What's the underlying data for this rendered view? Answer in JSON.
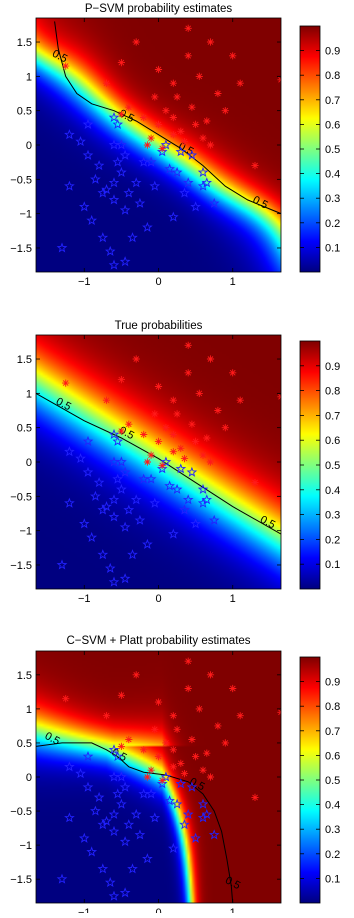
{
  "chart_data": [
    {
      "type": "heatmap",
      "title": "P−SVM probability estimates",
      "xlabel": "",
      "ylabel": "",
      "xlim": [
        -1.65,
        1.65
      ],
      "ylim": [
        -1.85,
        1.85
      ],
      "x_ticks": [
        -1,
        0,
        1
      ],
      "x_tick_labels": [
        "−1",
        "0",
        "1"
      ],
      "y_ticks": [
        -1.5,
        -1,
        -0.5,
        0,
        0.5,
        1,
        1.5
      ],
      "y_tick_labels": [
        "−1.5",
        "−1",
        "−0.5",
        "0",
        "0.5",
        "1",
        "1.5"
      ],
      "colorbar": {
        "range": [
          0,
          1
        ],
        "ticks": [
          "0.1",
          "0.2",
          "0.3",
          "0.4",
          "0.5",
          "0.6",
          "0.7",
          "0.8",
          "0.9"
        ]
      },
      "contour_level": 0.5,
      "contour_labels": [
        "0.5",
        "0.5",
        "0.5",
        "0.5"
      ],
      "contour": [
        [
          -1.4,
          1.8
        ],
        [
          -1.35,
          1.4
        ],
        [
          -1.25,
          1.0
        ],
        [
          -1.1,
          0.75
        ],
        [
          -0.9,
          0.6
        ],
        [
          -0.6,
          0.5
        ],
        [
          -0.3,
          0.35
        ],
        [
          0.0,
          0.15
        ],
        [
          0.3,
          -0.05
        ],
        [
          0.6,
          -0.3
        ],
        [
          0.9,
          -0.6
        ],
        [
          1.2,
          -0.8
        ],
        [
          1.65,
          -1.0
        ]
      ],
      "grid": false
    },
    {
      "type": "heatmap",
      "title": "True probabilities",
      "xlabel": "",
      "ylabel": "",
      "xlim": [
        -1.65,
        1.65
      ],
      "ylim": [
        -1.85,
        1.85
      ],
      "x_ticks": [
        -1,
        0,
        1
      ],
      "x_tick_labels": [
        "−1",
        "0",
        "1"
      ],
      "y_ticks": [
        -1.5,
        -1,
        -0.5,
        0,
        0.5,
        1,
        1.5
      ],
      "y_tick_labels": [
        "−1.5",
        "−1",
        "−0.5",
        "0",
        "0.5",
        "1",
        "1.5"
      ],
      "colorbar": {
        "range": [
          0,
          1
        ],
        "ticks": [
          "0.1",
          "0.2",
          "0.3",
          "0.4",
          "0.5",
          "0.6",
          "0.7",
          "0.8",
          "0.9"
        ]
      },
      "contour_level": 0.5,
      "contour_labels": [
        "0.5",
        "0.5",
        "0.5"
      ],
      "contour": [
        [
          -1.65,
          1.0
        ],
        [
          -1.0,
          0.6
        ],
        [
          -0.5,
          0.35
        ],
        [
          0.0,
          0.05
        ],
        [
          0.5,
          -0.3
        ],
        [
          1.0,
          -0.65
        ],
        [
          1.65,
          -1.05
        ]
      ],
      "grid": false
    },
    {
      "type": "heatmap",
      "title": "C−SVM + Platt probability estimates",
      "xlabel": "",
      "ylabel": "",
      "xlim": [
        -1.65,
        1.65
      ],
      "ylim": [
        -1.85,
        1.85
      ],
      "x_ticks": [
        -1,
        0,
        1
      ],
      "x_tick_labels": [
        "−1",
        "0",
        "1"
      ],
      "y_ticks": [
        -1.5,
        -1,
        -0.5,
        0,
        0.5,
        1,
        1.5
      ],
      "y_tick_labels": [
        "−1.5",
        "−1",
        "−0.5",
        "0",
        "0.5",
        "1",
        "1.5"
      ],
      "colorbar": {
        "range": [
          0,
          1
        ],
        "ticks": [
          "0.1",
          "0.2",
          "0.3",
          "0.4",
          "0.5",
          "0.6",
          "0.7",
          "0.8",
          "0.9"
        ]
      },
      "contour_level": 0.5,
      "contour_labels": [
        "0.5",
        "0.5",
        "0.5",
        "0.5"
      ],
      "contour": [
        [
          -1.65,
          0.45
        ],
        [
          -1.3,
          0.5
        ],
        [
          -0.9,
          0.5
        ],
        [
          -0.7,
          0.4
        ],
        [
          -0.55,
          0.3
        ],
        [
          -0.4,
          0.15
        ],
        [
          -0.2,
          0.07
        ],
        [
          0.1,
          0.03
        ],
        [
          0.4,
          -0.07
        ],
        [
          0.6,
          -0.25
        ],
        [
          0.75,
          -0.5
        ],
        [
          0.85,
          -0.8
        ],
        [
          0.92,
          -1.2
        ],
        [
          0.98,
          -1.6
        ],
        [
          1.0,
          -1.85
        ]
      ],
      "grid": false
    }
  ],
  "points": {
    "class_pos": [
      [
        -1.25,
        1.15
      ],
      [
        -0.5,
        0.45
      ],
      [
        -0.4,
        0.55
      ],
      [
        -0.2,
        0.4
      ],
      [
        0.0,
        0.3
      ],
      [
        0.1,
        0.5
      ],
      [
        0.2,
        0.4
      ],
      [
        0.3,
        0.2
      ],
      [
        0.5,
        0.3
      ],
      [
        0.6,
        0.1
      ],
      [
        -0.1,
        0.1
      ],
      [
        0.35,
        0.05
      ],
      [
        0.7,
        0.0
      ],
      [
        0.2,
        0.15
      ],
      [
        0.45,
        0.55
      ],
      [
        0.55,
        1.0
      ],
      [
        0.2,
        0.9
      ],
      [
        0.0,
        1.1
      ],
      [
        -0.3,
        1.5
      ],
      [
        -0.5,
        1.2
      ],
      [
        0.4,
        1.7
      ],
      [
        1.0,
        1.3
      ],
      [
        1.1,
        0.9
      ],
      [
        0.8,
        0.75
      ],
      [
        0.25,
        0.7
      ],
      [
        -0.05,
        0.7
      ],
      [
        0.7,
        1.5
      ],
      [
        -0.7,
        0.9
      ],
      [
        1.65,
        0.95
      ],
      [
        1.3,
        -0.3
      ],
      [
        0.4,
        1.3
      ],
      [
        0.65,
        0.35
      ],
      [
        -0.15,
        0.0
      ],
      [
        0.05,
        -0.05
      ],
      [
        0.9,
        0.5
      ]
    ],
    "class_neg": [
      [
        -1.2,
        0.15
      ],
      [
        -1.05,
        0.05
      ],
      [
        -0.95,
        0.3
      ],
      [
        -0.6,
        0.4
      ],
      [
        -0.55,
        0.3
      ],
      [
        -0.6,
        0.0
      ],
      [
        -0.5,
        0.0
      ],
      [
        -0.45,
        -0.15
      ],
      [
        -0.55,
        -0.25
      ],
      [
        -0.5,
        -0.4
      ],
      [
        -0.6,
        -0.55
      ],
      [
        -0.7,
        -0.65
      ],
      [
        -0.75,
        -0.7
      ],
      [
        -0.6,
        -0.8
      ],
      [
        -0.45,
        -0.95
      ],
      [
        -0.4,
        -0.7
      ],
      [
        -0.3,
        -0.55
      ],
      [
        -0.2,
        -0.25
      ],
      [
        -0.1,
        -0.25
      ],
      [
        0.05,
        -0.1
      ],
      [
        0.1,
        0.0
      ],
      [
        0.15,
        -0.35
      ],
      [
        0.25,
        -0.4
      ],
      [
        0.3,
        -0.1
      ],
      [
        0.4,
        -0.55
      ],
      [
        0.5,
        -0.9
      ],
      [
        0.6,
        -0.6
      ],
      [
        0.65,
        -0.55
      ],
      [
        -0.8,
        -0.3
      ],
      [
        -0.85,
        -0.5
      ],
      [
        -1.2,
        -0.6
      ],
      [
        -1.0,
        -0.9
      ],
      [
        -0.9,
        -1.1
      ],
      [
        -0.65,
        -1.55
      ],
      [
        -0.6,
        -1.75
      ],
      [
        -0.15,
        -1.2
      ],
      [
        -0.35,
        -1.35
      ],
      [
        -1.3,
        -1.5
      ],
      [
        0.35,
        -0.7
      ],
      [
        -0.25,
        -0.85
      ],
      [
        -0.75,
        -1.35
      ],
      [
        0.45,
        -0.15
      ],
      [
        -0.95,
        -0.15
      ],
      [
        -0.05,
        -0.6
      ],
      [
        0.75,
        -0.85
      ],
      [
        -0.45,
        -1.7
      ],
      [
        0.2,
        -1.05
      ],
      [
        0.6,
        -0.4
      ]
    ]
  },
  "palette": {
    "star_neg": "#2222ff",
    "star_pos": "#ff1a1a",
    "contour": "#000000"
  }
}
